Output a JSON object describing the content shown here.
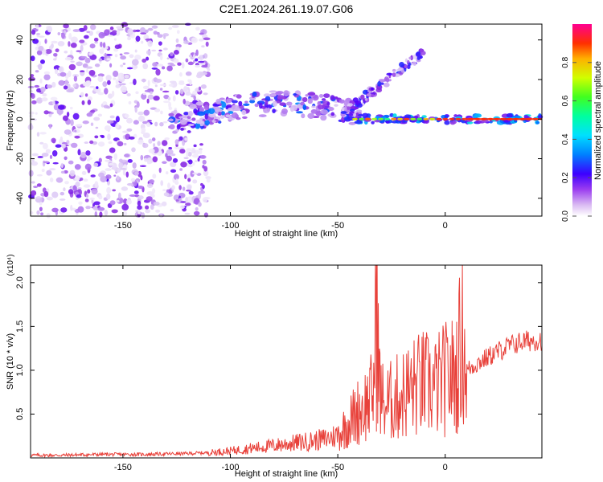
{
  "figure": {
    "title": "C2E1.2024.261.19.07.G06"
  },
  "chart_data": [
    {
      "type": "heatmap",
      "xlabel": "Height of straight line (km)",
      "ylabel": "Frequency (Hz)",
      "xlim": [
        -193,
        45
      ],
      "ylim": [
        -49,
        48
      ],
      "xticks": [
        -150,
        -100,
        -50,
        0
      ],
      "yticks": [
        -40,
        -20,
        0,
        20,
        40
      ],
      "colorbar": {
        "label": "Normalized spectral amplitude",
        "range": [
          0,
          1
        ],
        "ticks": [
          0.0,
          0.2,
          0.4,
          0.6,
          0.8
        ]
      },
      "colormap": [
        "#ffffff",
        "#dcc8f5",
        "#b27af0",
        "#8a2be2",
        "#4b00ff",
        "#0050ff",
        "#00c8ff",
        "#00ffb0",
        "#40ff40",
        "#c8ff00",
        "#ffd000",
        "#ff7000",
        "#ff1010",
        "#ff0090"
      ],
      "features": [
        {
          "name": "background noise",
          "x": [
            -193,
            -110
          ],
          "frequency_center": 0,
          "frequency_spread": 48,
          "amplitude": 0.15
        },
        {
          "name": "lower band",
          "x": [
            -128,
            -40
          ],
          "frequency_start": -2,
          "frequency_end": 8,
          "amplitude": 0.35
        },
        {
          "name": "upward branch",
          "x": [
            -48,
            -10
          ],
          "frequency_start": 2,
          "frequency_end": 34,
          "amplitude": 0.3
        },
        {
          "name": "steady line",
          "x": [
            -42,
            45
          ],
          "frequency_center": 0,
          "amplitude": 0.9
        }
      ]
    },
    {
      "type": "line",
      "xlabel": "Height of straight line (km)",
      "ylabel": "SNR (10 * v/v)",
      "y_multiplier_label": "(x10⁴)",
      "xlim": [
        -193,
        45
      ],
      "ylim": [
        0,
        2.2
      ],
      "xticks": [
        -150,
        -100,
        -50,
        0
      ],
      "yticks": [
        0.5,
        1.0,
        1.5,
        2.0
      ],
      "series": [
        {
          "color": "#e8413a",
          "x": [
            -193,
            -180,
            -160,
            -140,
            -120,
            -110,
            -100,
            -90,
            -80,
            -70,
            -60,
            -55,
            -50,
            -45,
            -40,
            -35,
            -33,
            -32,
            -31,
            -30,
            -28,
            -25,
            -20,
            -15,
            -10,
            -5,
            0,
            5,
            8,
            10,
            15,
            20,
            25,
            30,
            35,
            40,
            45
          ],
          "values": [
            0.03,
            0.03,
            0.04,
            0.04,
            0.05,
            0.06,
            0.08,
            0.11,
            0.14,
            0.17,
            0.2,
            0.22,
            0.26,
            0.4,
            0.55,
            0.65,
            0.85,
            2.2,
            0.95,
            0.7,
            0.6,
            0.65,
            0.72,
            0.8,
            0.85,
            0.8,
            0.9,
            0.95,
            1.4,
            1.0,
            1.08,
            1.15,
            1.22,
            1.28,
            1.32,
            1.34,
            1.35
          ]
        }
      ]
    }
  ]
}
